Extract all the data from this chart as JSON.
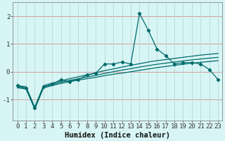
{
  "xlabel": "Humidex (Indice chaleur)",
  "bg_color": "#d8f5f5",
  "grid_color_h": "#d09090",
  "grid_color_v": "#b8d8d8",
  "line_color": "#006b6b",
  "x_data": [
    0,
    1,
    2,
    3,
    4,
    5,
    6,
    7,
    8,
    9,
    10,
    11,
    12,
    13,
    14,
    15,
    16,
    17,
    18,
    19,
    20,
    21,
    22,
    23
  ],
  "y_main": [
    -0.5,
    -0.6,
    -1.3,
    -0.55,
    -0.45,
    -0.28,
    -0.35,
    -0.28,
    -0.12,
    -0.05,
    0.28,
    0.28,
    0.35,
    0.28,
    2.1,
    1.5,
    0.82,
    0.58,
    0.28,
    0.33,
    0.33,
    0.28,
    0.08,
    -0.28
  ],
  "y_trend_low": [
    -0.58,
    -0.62,
    -1.35,
    -0.58,
    -0.5,
    -0.42,
    -0.36,
    -0.3,
    -0.25,
    -0.2,
    -0.14,
    -0.09,
    -0.05,
    0.0,
    0.05,
    0.1,
    0.15,
    0.19,
    0.23,
    0.27,
    0.31,
    0.34,
    0.37,
    0.4
  ],
  "y_trend_mid": [
    -0.55,
    -0.58,
    -1.32,
    -0.55,
    -0.46,
    -0.38,
    -0.31,
    -0.25,
    -0.19,
    -0.13,
    -0.06,
    0.0,
    0.06,
    0.11,
    0.17,
    0.22,
    0.27,
    0.31,
    0.35,
    0.39,
    0.43,
    0.46,
    0.49,
    0.52
  ],
  "y_trend_high": [
    -0.5,
    -0.54,
    -1.28,
    -0.5,
    -0.41,
    -0.33,
    -0.25,
    -0.18,
    -0.11,
    -0.04,
    0.04,
    0.1,
    0.17,
    0.23,
    0.29,
    0.35,
    0.4,
    0.44,
    0.48,
    0.52,
    0.56,
    0.6,
    0.63,
    0.66
  ],
  "ylim": [
    -1.75,
    2.5
  ],
  "yticks": [
    -1,
    0,
    1,
    2
  ],
  "xlim": [
    -0.5,
    23.5
  ],
  "xticks": [
    0,
    1,
    2,
    3,
    4,
    5,
    6,
    7,
    8,
    9,
    10,
    11,
    12,
    13,
    14,
    15,
    16,
    17,
    18,
    19,
    20,
    21,
    22,
    23
  ],
  "tick_fontsize": 6.5,
  "label_fontsize": 7.5
}
